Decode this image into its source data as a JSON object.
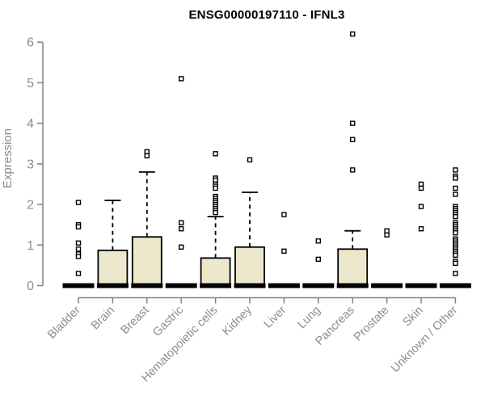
{
  "chart_data": {
    "type": "boxplot",
    "title": "ENSG00000197110 - IFNL3",
    "ylabel": "Expression",
    "xlabel": "",
    "ylim": [
      0,
      6
    ],
    "yticks": [
      0,
      1,
      2,
      3,
      4,
      5,
      6
    ],
    "grid": false,
    "legend": "none",
    "colors": {
      "box_fill": "#EDE8CC",
      "box_stroke": "#000000",
      "median": "#000000",
      "outlier_stroke": "#000000",
      "axis_line": "#808080",
      "tick_label": "#8C8C8C",
      "title": "#000000",
      "background": "#FFFFFF"
    },
    "categories": [
      "Bladder",
      "Brain",
      "Breast",
      "Gastric",
      "Hematopoietic cells",
      "Kidney",
      "Liver",
      "Lung",
      "Pancreas",
      "Prostate",
      "Skin",
      "Unknown / Other"
    ],
    "series": [
      {
        "category": "Bladder",
        "whisker_low": 0,
        "q1": 0,
        "median": 0,
        "q3": 0,
        "whisker_high": 0,
        "outliers": [
          2.05,
          1.5,
          1.45,
          1.05,
          0.9,
          0.78,
          0.72,
          0.3
        ]
      },
      {
        "category": "Brain",
        "whisker_low": 0,
        "q1": 0,
        "median": 0,
        "q3": 0.87,
        "whisker_high": 2.1,
        "outliers": []
      },
      {
        "category": "Breast",
        "whisker_low": 0,
        "q1": 0,
        "median": 0,
        "q3": 1.2,
        "whisker_high": 2.8,
        "outliers": [
          3.3,
          3.2
        ]
      },
      {
        "category": "Gastric",
        "whisker_low": 0,
        "q1": 0,
        "median": 0,
        "q3": 0,
        "whisker_high": 0,
        "outliers": [
          5.1,
          1.55,
          1.4,
          0.95
        ]
      },
      {
        "category": "Hematopoietic cells",
        "whisker_low": 0,
        "q1": 0,
        "median": 0,
        "q3": 0.68,
        "whisker_high": 1.7,
        "outliers": [
          3.25,
          2.65,
          2.6,
          2.5,
          2.45,
          2.4,
          2.2,
          2.15,
          2.1,
          2.05,
          2.0,
          1.95,
          1.9,
          1.85,
          1.8
        ]
      },
      {
        "category": "Kidney",
        "whisker_low": 0,
        "q1": 0,
        "median": 0,
        "q3": 0.95,
        "whisker_high": 2.3,
        "outliers": [
          3.1
        ]
      },
      {
        "category": "Liver",
        "whisker_low": 0,
        "q1": 0,
        "median": 0,
        "q3": 0,
        "whisker_high": 0,
        "outliers": [
          1.75,
          0.85
        ]
      },
      {
        "category": "Lung",
        "whisker_low": 0,
        "q1": 0,
        "median": 0,
        "q3": 0,
        "whisker_high": 0,
        "outliers": [
          1.1,
          0.65
        ]
      },
      {
        "category": "Pancreas",
        "whisker_low": 0,
        "q1": 0,
        "median": 0,
        "q3": 0.9,
        "whisker_high": 1.35,
        "outliers": [
          6.2,
          4.0,
          3.6,
          2.85
        ]
      },
      {
        "category": "Prostate",
        "whisker_low": 0,
        "q1": 0,
        "median": 0,
        "q3": 0,
        "whisker_high": 0,
        "outliers": [
          1.35,
          1.25
        ]
      },
      {
        "category": "Skin",
        "whisker_low": 0,
        "q1": 0,
        "median": 0,
        "q3": 0,
        "whisker_high": 0,
        "outliers": [
          2.5,
          2.4,
          1.95,
          1.4
        ]
      },
      {
        "category": "Unknown / Other",
        "whisker_low": 0,
        "q1": 0,
        "median": 0,
        "q3": 0,
        "whisker_high": 0,
        "outliers": [
          2.85,
          2.7,
          2.65,
          2.4,
          2.25,
          1.95,
          1.9,
          1.85,
          1.8,
          1.75,
          1.7,
          1.55,
          1.5,
          1.45,
          1.4,
          1.35,
          1.3,
          1.15,
          1.1,
          1.05,
          1.0,
          0.95,
          0.9,
          0.85,
          0.8,
          0.75,
          0.6,
          0.55,
          0.3
        ]
      }
    ]
  }
}
